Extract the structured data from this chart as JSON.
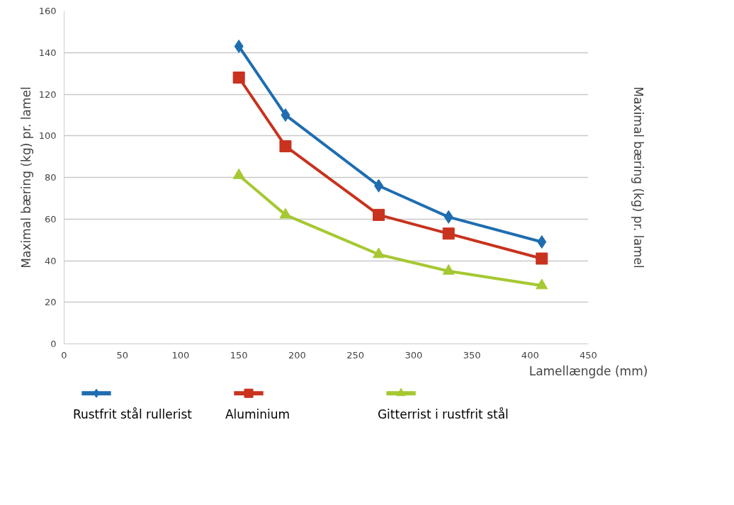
{
  "chart_data": {
    "type": "line",
    "xlabel": "Lamellængde (mm)",
    "ylabel": "Maximal bæring (kg) pr. lamel",
    "annotations": [
      "Maximal bæring (kg) pr. lamel"
    ],
    "x": [
      150,
      190,
      270,
      330,
      410
    ],
    "series": [
      {
        "name": "Rustfrit stål rullerist",
        "color": "#1f6db0",
        "marker": "diamond",
        "values": [
          143,
          110,
          76,
          61,
          49
        ]
      },
      {
        "name": "Aluminium",
        "color": "#c8321e",
        "marker": "square",
        "values": [
          128,
          95,
          62,
          53,
          41
        ]
      },
      {
        "name": "Gitterrist i rustfrit stål",
        "color": "#a6c832",
        "marker": "triangle",
        "values": [
          81,
          62,
          43,
          35,
          28
        ]
      }
    ],
    "xlim": [
      0,
      450
    ],
    "xticks": [
      0,
      50,
      100,
      150,
      200,
      250,
      300,
      350,
      400,
      450
    ],
    "ylim": [
      0,
      160
    ],
    "yticks": [
      0,
      20,
      40,
      60,
      80,
      100,
      120,
      140,
      160
    ],
    "grid": "y",
    "legend": "bottom",
    "line_style": "solid"
  }
}
